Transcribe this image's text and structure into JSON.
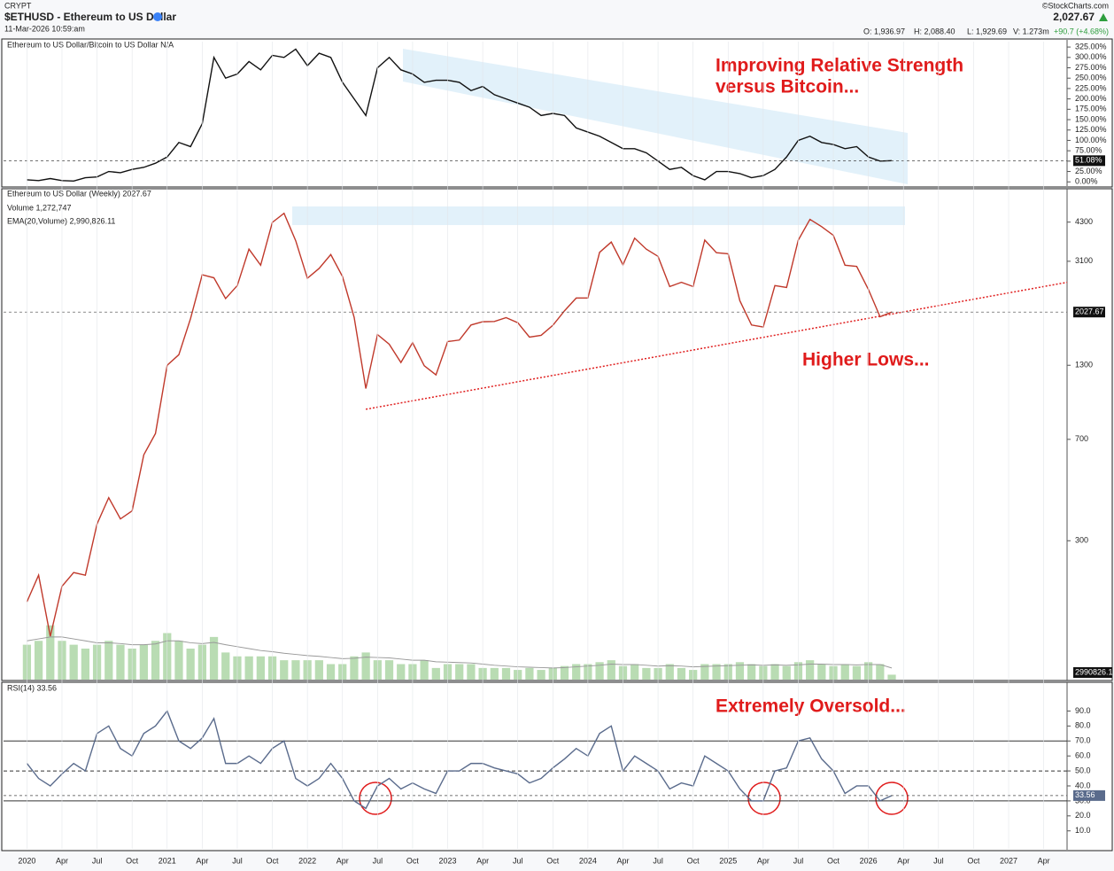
{
  "header": {
    "exchange": "CRYPT",
    "symbol": "$ETHUSD - Ethereum to US Dollar",
    "timestamp": "11-Mar-2026 10:59:am",
    "brand": "©StockCharts.com",
    "last": "2,027.67",
    "open": "O: 1,936.97",
    "high": "H: 2,088.40",
    "low": "L: 1,929.69",
    "volume": "V: 1.273m",
    "change": "+90.7 (+4.68%)"
  },
  "chart_data": [
    {
      "type": "line",
      "legend": "Ethereum to US Dollar/Bitcoin to US Dollar N/A",
      "annotations": [
        "Improving Relative Strength",
        "versus Bitcoin..."
      ],
      "x": [
        "2020-01",
        "2020-02",
        "2020-03",
        "2020-04",
        "2020-05",
        "2020-06",
        "2020-07",
        "2020-08",
        "2020-09",
        "2020-10",
        "2020-11",
        "2020-12",
        "2021-01",
        "2021-02",
        "2021-03",
        "2021-04",
        "2021-05",
        "2021-06",
        "2021-07",
        "2021-08",
        "2021-09",
        "2021-10",
        "2021-11",
        "2021-12",
        "2022-01",
        "2022-02",
        "2022-03",
        "2022-04",
        "2022-05",
        "2022-06",
        "2022-07",
        "2022-08",
        "2022-09",
        "2022-10",
        "2022-11",
        "2022-12",
        "2023-01",
        "2023-02",
        "2023-03",
        "2023-04",
        "2023-05",
        "2023-06",
        "2023-07",
        "2023-08",
        "2023-09",
        "2023-10",
        "2023-11",
        "2023-12",
        "2024-01",
        "2024-02",
        "2024-03",
        "2024-04",
        "2024-05",
        "2024-06",
        "2024-07",
        "2024-08",
        "2024-09",
        "2024-10",
        "2024-11",
        "2024-12",
        "2025-01",
        "2025-02",
        "2025-03",
        "2025-04",
        "2025-05",
        "2025-06",
        "2025-07",
        "2025-08",
        "2025-09",
        "2025-10",
        "2025-11",
        "2025-12",
        "2026-01",
        "2026-02",
        "2026-03"
      ],
      "series": [
        {
          "name": "Ethereum to US Dollar/Bitcoin to US Dollar",
          "color": "#111111",
          "values": [
            5,
            3,
            8,
            3,
            2,
            10,
            12,
            25,
            22,
            30,
            35,
            45,
            60,
            95,
            85,
            140,
            300,
            250,
            260,
            290,
            270,
            305,
            300,
            320,
            280,
            310,
            300,
            240,
            200,
            160,
            275,
            300,
            270,
            260,
            240,
            245,
            245,
            240,
            220,
            230,
            210,
            200,
            190,
            180,
            160,
            165,
            160,
            130,
            120,
            110,
            95,
            80,
            80,
            70,
            50,
            30,
            35,
            15,
            5,
            25,
            25,
            20,
            10,
            15,
            30,
            60,
            100,
            110,
            95,
            90,
            80,
            85,
            60,
            50,
            51.08
          ]
        }
      ],
      "last_value_label": "51.08%",
      "xlim": [
        "2019-11",
        "2027-06"
      ],
      "ylim": [
        -8,
        338
      ],
      "yticks": [
        {
          "value": 0,
          "label": "0.00%"
        },
        {
          "value": 25,
          "label": "25.00%"
        },
        {
          "value": 50,
          "label": "50.00%"
        },
        {
          "value": 75,
          "label": "75.00%"
        },
        {
          "value": 100,
          "label": "100.00%"
        },
        {
          "value": 125,
          "label": "125.00%"
        },
        {
          "value": 150,
          "label": "150.00%"
        },
        {
          "value": 175,
          "label": "175.00%"
        },
        {
          "value": 200,
          "label": "200.00%"
        },
        {
          "value": 225,
          "label": "225.00%"
        },
        {
          "value": 250,
          "label": "250.00%"
        },
        {
          "value": 275,
          "label": "275.00%"
        },
        {
          "value": 300,
          "label": "300.00%"
        },
        {
          "value": 325,
          "label": "325.00%"
        }
      ]
    },
    {
      "type": "line",
      "log_scale": true,
      "annotations": [
        "Higher Lows..."
      ],
      "x": [
        "2020-01",
        "2020-02",
        "2020-03",
        "2020-04",
        "2020-05",
        "2020-06",
        "2020-07",
        "2020-08",
        "2020-09",
        "2020-10",
        "2020-11",
        "2020-12",
        "2021-01",
        "2021-02",
        "2021-03",
        "2021-04",
        "2021-05",
        "2021-06",
        "2021-07",
        "2021-08",
        "2021-09",
        "2021-10",
        "2021-11",
        "2021-12",
        "2022-01",
        "2022-02",
        "2022-03",
        "2022-04",
        "2022-05",
        "2022-06",
        "2022-07",
        "2022-08",
        "2022-09",
        "2022-10",
        "2022-11",
        "2022-12",
        "2023-01",
        "2023-02",
        "2023-03",
        "2023-04",
        "2023-05",
        "2023-06",
        "2023-07",
        "2023-08",
        "2023-09",
        "2023-10",
        "2023-11",
        "2023-12",
        "2024-01",
        "2024-02",
        "2024-03",
        "2024-04",
        "2024-05",
        "2024-06",
        "2024-07",
        "2024-08",
        "2024-09",
        "2024-10",
        "2024-11",
        "2024-12",
        "2025-01",
        "2025-02",
        "2025-03",
        "2025-04",
        "2025-05",
        "2025-06",
        "2025-07",
        "2025-08",
        "2025-09",
        "2025-10",
        "2025-11",
        "2025-12",
        "2026-01",
        "2026-02",
        "2026-03"
      ],
      "series": [
        {
          "name": "Ethereum to US Dollar (Weekly) 2027.67",
          "color": "#c0392b",
          "values": [
            180,
            225,
            135,
            205,
            230,
            225,
            345,
            430,
            360,
            385,
            615,
            735,
            1300,
            1420,
            1920,
            2770,
            2700,
            2270,
            2530,
            3430,
            3000,
            4290,
            4630,
            3680,
            2690,
            2920,
            3280,
            2730,
            1940,
            1070,
            1680,
            1550,
            1330,
            1570,
            1295,
            1200,
            1585,
            1605,
            1820,
            1870,
            1875,
            1935,
            1855,
            1645,
            1670,
            1815,
            2050,
            2280,
            2280,
            3340,
            3640,
            3010,
            3760,
            3430,
            3230,
            2510,
            2600,
            2510,
            3700,
            3330,
            3300,
            2230,
            1820,
            1790,
            2530,
            2490,
            3700,
            4400,
            4140,
            3850,
            3000,
            2970,
            2450,
            1950,
            2027.67
          ]
        }
      ],
      "volume": {
        "name": "Volume 1,272,747",
        "color": "#b9dcb3",
        "values": [
          9000000,
          10000000,
          14000000,
          10000000,
          9000000,
          8000000,
          9000000,
          10000000,
          9000000,
          8000000,
          9000000,
          10000000,
          12000000,
          10000000,
          8000000,
          9000000,
          11000000,
          7000000,
          6000000,
          6000000,
          6000000,
          6000000,
          5000000,
          5000000,
          5000000,
          5000000,
          4000000,
          4000000,
          6000000,
          7000000,
          5000000,
          5000000,
          4000000,
          4000000,
          5000000,
          3000000,
          4000000,
          4000000,
          4000000,
          3000000,
          3000000,
          3000000,
          2500000,
          3000000,
          2500000,
          3000000,
          3500000,
          4000000,
          4000000,
          4500000,
          5000000,
          3500000,
          4000000,
          3000000,
          3000000,
          4000000,
          3000000,
          2500000,
          4000000,
          4000000,
          4000000,
          4500000,
          4000000,
          3500000,
          4000000,
          3500000,
          4500000,
          5000000,
          4000000,
          3500000,
          4000000,
          3500000,
          4500000,
          4000000,
          1272747
        ]
      },
      "ema": {
        "name": "EMA(20,Volume) 2,990,826.11",
        "color": "#999999",
        "label": "2990826.1",
        "values": [
          10000000,
          10500000,
          11000000,
          11000000,
          10500000,
          10000000,
          9500000,
          9500000,
          9300000,
          9000000,
          9000000,
          9200000,
          10000000,
          10000000,
          9500000,
          9300000,
          9600000,
          9000000,
          8500000,
          8000000,
          7500000,
          7200000,
          6800000,
          6500000,
          6200000,
          6000000,
          5700000,
          5400000,
          5500000,
          5800000,
          5700000,
          5600000,
          5300000,
          5000000,
          5000000,
          4600000,
          4500000,
          4400000,
          4300000,
          4000000,
          3700000,
          3500000,
          3300000,
          3200000,
          3100000,
          3000000,
          3100000,
          3300000,
          3500000,
          3700000,
          4000000,
          3900000,
          3900000,
          3700000,
          3500000,
          3600000,
          3500000,
          3300000,
          3400000,
          3500000,
          3600000,
          3700000,
          3800000,
          3700000,
          3800000,
          3700000,
          3800000,
          4000000,
          4000000,
          3900000,
          3900000,
          3800000,
          3900000,
          3900000,
          2990826.11
        ]
      },
      "volume_ylim": [
        0,
        16000000
      ],
      "trendline": {
        "x": [
          "2022-06",
          "2027-06"
        ],
        "values": [
          900,
          2600
        ],
        "color": "#e02020"
      },
      "xlim": [
        "2019-11",
        "2027-06"
      ],
      "ylim": [
        94,
        5600
      ],
      "yticks": [
        300,
        700,
        1300,
        3100,
        4300
      ]
    },
    {
      "type": "line",
      "annotations": [
        "Extremely Oversold..."
      ],
      "x": [
        "2020-01",
        "2020-02",
        "2020-03",
        "2020-04",
        "2020-05",
        "2020-06",
        "2020-07",
        "2020-08",
        "2020-09",
        "2020-10",
        "2020-11",
        "2020-12",
        "2021-01",
        "2021-02",
        "2021-03",
        "2021-04",
        "2021-05",
        "2021-06",
        "2021-07",
        "2021-08",
        "2021-09",
        "2021-10",
        "2021-11",
        "2021-12",
        "2022-01",
        "2022-02",
        "2022-03",
        "2022-04",
        "2022-05",
        "2022-06",
        "2022-07",
        "2022-08",
        "2022-09",
        "2022-10",
        "2022-11",
        "2022-12",
        "2023-01",
        "2023-02",
        "2023-03",
        "2023-04",
        "2023-05",
        "2023-06",
        "2023-07",
        "2023-08",
        "2023-09",
        "2023-10",
        "2023-11",
        "2023-12",
        "2024-01",
        "2024-02",
        "2024-03",
        "2024-04",
        "2024-05",
        "2024-06",
        "2024-07",
        "2024-08",
        "2024-09",
        "2024-10",
        "2024-11",
        "2024-12",
        "2025-01",
        "2025-02",
        "2025-03",
        "2025-04",
        "2025-05",
        "2025-06",
        "2025-07",
        "2025-08",
        "2025-09",
        "2025-10",
        "2025-11",
        "2025-12",
        "2026-01",
        "2026-02",
        "2026-03"
      ],
      "series": [
        {
          "name": "RSI(14) 33.56",
          "color": "#5a6b8c",
          "values": [
            55,
            45,
            40,
            48,
            55,
            50,
            75,
            80,
            65,
            60,
            75,
            80,
            90,
            70,
            65,
            72,
            85,
            55,
            55,
            60,
            55,
            65,
            70,
            45,
            40,
            45,
            55,
            45,
            30,
            25,
            40,
            45,
            38,
            42,
            38,
            35,
            50,
            50,
            55,
            55,
            52,
            50,
            48,
            42,
            45,
            52,
            58,
            65,
            60,
            75,
            80,
            50,
            60,
            55,
            50,
            38,
            42,
            40,
            60,
            55,
            50,
            38,
            30,
            30,
            50,
            52,
            70,
            72,
            58,
            50,
            35,
            40,
            40,
            30,
            33.56
          ]
        }
      ],
      "reference_lines": [
        {
          "value": 70,
          "style": "solid"
        },
        {
          "value": 50,
          "style": "dashed"
        },
        {
          "value": 30,
          "style": "solid"
        }
      ],
      "xlim": [
        "2019-11",
        "2027-06"
      ],
      "ylim": [
        -2,
        108
      ],
      "yticks": [
        {
          "value": 10,
          "label": "10.0"
        },
        {
          "value": 20,
          "label": "20.0"
        },
        {
          "value": 30,
          "label": "30.0"
        },
        {
          "value": 40,
          "label": "40.0"
        },
        {
          "value": 50,
          "label": "50.0"
        },
        {
          "value": 60,
          "label": "60.0"
        },
        {
          "value": 70,
          "label": "70.0"
        },
        {
          "value": 80,
          "label": "80.0"
        },
        {
          "value": 90,
          "label": "90.0"
        }
      ],
      "xticks": [
        {
          "value": "2020-01",
          "label": "2020"
        },
        {
          "value": "2020-04",
          "label": "Apr"
        },
        {
          "value": "2020-07",
          "label": "Jul"
        },
        {
          "value": "2020-10",
          "label": "Oct"
        },
        {
          "value": "2021-01",
          "label": "2021"
        },
        {
          "value": "2021-04",
          "label": "Apr"
        },
        {
          "value": "2021-07",
          "label": "Jul"
        },
        {
          "value": "2021-10",
          "label": "Oct"
        },
        {
          "value": "2022-01",
          "label": "2022"
        },
        {
          "value": "2022-04",
          "label": "Apr"
        },
        {
          "value": "2022-07",
          "label": "Jul"
        },
        {
          "value": "2022-10",
          "label": "Oct"
        },
        {
          "value": "2023-01",
          "label": "2023"
        },
        {
          "value": "2023-04",
          "label": "Apr"
        },
        {
          "value": "2023-07",
          "label": "Jul"
        },
        {
          "value": "2023-10",
          "label": "Oct"
        },
        {
          "value": "2024-01",
          "label": "2024"
        },
        {
          "value": "2024-04",
          "label": "Apr"
        },
        {
          "value": "2024-07",
          "label": "Jul"
        },
        {
          "value": "2024-10",
          "label": "Oct"
        },
        {
          "value": "2025-01",
          "label": "2025"
        },
        {
          "value": "2025-04",
          "label": "Apr"
        },
        {
          "value": "2025-07",
          "label": "Jul"
        },
        {
          "value": "2025-10",
          "label": "Oct"
        },
        {
          "value": "2026-01",
          "label": "2026"
        },
        {
          "value": "2026-04",
          "label": "Apr"
        },
        {
          "value": "2026-07",
          "label": "Jul"
        },
        {
          "value": "2026-10",
          "label": "Oct"
        },
        {
          "value": "2027-01",
          "label": "2027"
        },
        {
          "value": "2027-04",
          "label": "Apr"
        }
      ]
    }
  ]
}
